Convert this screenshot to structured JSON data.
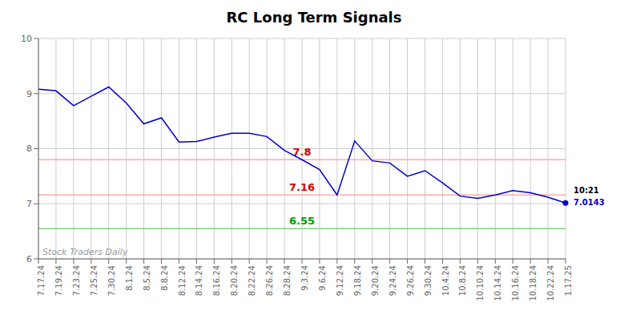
{
  "chart_data": {
    "type": "line",
    "title": "RC Long Term Signals",
    "categories": [
      "7.17.24",
      "7.19.24",
      "7.23.24",
      "7.25.24",
      "7.30.24",
      "8.1.24",
      "8.5.24",
      "8.8.24",
      "8.12.24",
      "8.14.24",
      "8.16.24",
      "8.20.24",
      "8.22.24",
      "8.26.24",
      "8.28.24",
      "9.3.24",
      "9.6.24",
      "9.12.24",
      "9.18.24",
      "9.20.24",
      "9.24.24",
      "9.26.24",
      "9.30.24",
      "10.4.24",
      "10.8.24",
      "10.10.24",
      "10.14.24",
      "10.16.24",
      "10.18.24",
      "10.22.24",
      "1.17.25"
    ],
    "values": [
      9.08,
      9.05,
      8.78,
      8.95,
      9.12,
      8.83,
      8.45,
      8.56,
      8.12,
      8.13,
      8.21,
      8.28,
      8.28,
      8.22,
      7.97,
      7.8,
      7.62,
      7.16,
      8.14,
      7.78,
      7.74,
      7.5,
      7.6,
      7.38,
      7.14,
      7.1,
      7.16,
      7.24,
      7.2,
      7.12,
      7.0143
    ],
    "color": "#0000cc",
    "ylim": [
      6,
      10
    ],
    "yticks": [
      6,
      7,
      8,
      9,
      10
    ],
    "grid": true,
    "hlines": [
      {
        "value": 7.8,
        "label": "7.8",
        "color": "#ffaaaa",
        "label_color": "#cc0000"
      },
      {
        "value": 7.16,
        "label": "7.16",
        "color": "#ffaaaa",
        "label_color": "#cc0000"
      },
      {
        "value": 6.55,
        "label": "6.55",
        "color": "#88cc88",
        "label_color": "#009900"
      }
    ],
    "last_point_label": {
      "text": "10:21",
      "color": "#000000"
    },
    "watermark": {
      "text": "Stock Traders Daily",
      "color": "#999999"
    }
  }
}
